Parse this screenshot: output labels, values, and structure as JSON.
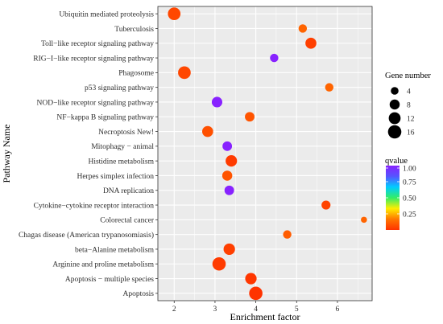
{
  "chart_data": {
    "type": "scatter",
    "title": "",
    "xlabel": "Enrichment factor",
    "ylabel": "Pathway Name",
    "xlim": [
      1.6,
      6.85
    ],
    "x_ticks": [
      2,
      3,
      4,
      5,
      6
    ],
    "grid": true,
    "categories": [
      "Ubiquitin mediated proteolysis",
      "Tuberculosis",
      "Toll−like receptor signaling pathway",
      "RIG−I−like receptor signaling pathway",
      "Phagosome",
      "p53 signaling pathway",
      "NOD−like receptor signaling pathway",
      "NF−kappa B signaling pathway",
      "Necroptosis New!",
      "Mitophagy − animal",
      "Histidine metabolism",
      "Herpes simplex infection",
      "DNA replication",
      "Cytokine−cytokine receptor interaction",
      "Colorectal cancer",
      "Chagas disease (American trypanosomiasis)",
      "beta−Alanine metabolism",
      "Arginine and proline metabolism",
      "Apoptosis − multiple species",
      "Apoptosis"
    ],
    "points": [
      {
        "pathway": "Ubiquitin mediated proteolysis",
        "x": 2.0,
        "gene_number": 14,
        "qvalue": 0.05
      },
      {
        "pathway": "Tuberculosis",
        "x": 5.15,
        "gene_number": 5,
        "qvalue": 0.12
      },
      {
        "pathway": "Toll−like receptor signaling pathway",
        "x": 5.35,
        "gene_number": 10,
        "qvalue": 0.03
      },
      {
        "pathway": "RIG−I−like receptor signaling pathway",
        "x": 4.45,
        "gene_number": 5,
        "qvalue": 1.0
      },
      {
        "pathway": "Phagosome",
        "x": 2.25,
        "gene_number": 14,
        "qvalue": 0.05
      },
      {
        "pathway": "p53 signaling pathway",
        "x": 5.8,
        "gene_number": 5,
        "qvalue": 0.12
      },
      {
        "pathway": "NOD−like receptor signaling pathway",
        "x": 3.05,
        "gene_number": 9,
        "qvalue": 1.0
      },
      {
        "pathway": "NF−kappa B signaling pathway",
        "x": 3.85,
        "gene_number": 7,
        "qvalue": 0.08
      },
      {
        "pathway": "Necroptosis New!",
        "x": 2.82,
        "gene_number": 10,
        "qvalue": 0.07
      },
      {
        "pathway": "Mitophagy − animal",
        "x": 3.3,
        "gene_number": 7,
        "qvalue": 1.0
      },
      {
        "pathway": "Histidine metabolism",
        "x": 3.4,
        "gene_number": 11,
        "qvalue": 0.02
      },
      {
        "pathway": "Herpes simplex infection",
        "x": 3.3,
        "gene_number": 8,
        "qvalue": 0.08
      },
      {
        "pathway": "DNA replication",
        "x": 3.35,
        "gene_number": 7,
        "qvalue": 1.0
      },
      {
        "pathway": "Cytokine−cytokine receptor interaction",
        "x": 5.72,
        "gene_number": 6,
        "qvalue": 0.04
      },
      {
        "pathway": "Colorectal cancer",
        "x": 6.65,
        "gene_number": 2,
        "qvalue": 0.12
      },
      {
        "pathway": "Chagas disease (American trypanosomiasis)",
        "x": 4.77,
        "gene_number": 5,
        "qvalue": 0.1
      },
      {
        "pathway": "beta−Alanine metabolism",
        "x": 3.35,
        "gene_number": 11,
        "qvalue": 0.03
      },
      {
        "pathway": "Arginine and proline metabolism",
        "x": 3.1,
        "gene_number": 16,
        "qvalue": 0.02
      },
      {
        "pathway": "Apoptosis − multiple species",
        "x": 3.88,
        "gene_number": 11,
        "qvalue": 0.01
      },
      {
        "pathway": "Apoptosis",
        "x": 4.0,
        "gene_number": 16,
        "qvalue": 0.0
      }
    ],
    "size_legend": {
      "title": "Gene number",
      "values": [
        4,
        8,
        12,
        16
      ]
    },
    "color_legend": {
      "title": "qvalue",
      "range": [
        0,
        1.0
      ],
      "ticks": [
        1.0,
        0.75,
        0.5,
        0.25
      ],
      "tick_labels": [
        "1.00",
        "0.75",
        "0.50",
        "0.25"
      ],
      "gradient_colors": [
        "#ff3300",
        "#ff7700",
        "#ffee00",
        "#33ee66",
        "#00ccff",
        "#5555ff",
        "#8822ff"
      ]
    },
    "colors": {
      "panel_background": "#ebebeb",
      "grid": "#ffffff",
      "legend_point": "#000000"
    },
    "legend_placement": "right"
  }
}
